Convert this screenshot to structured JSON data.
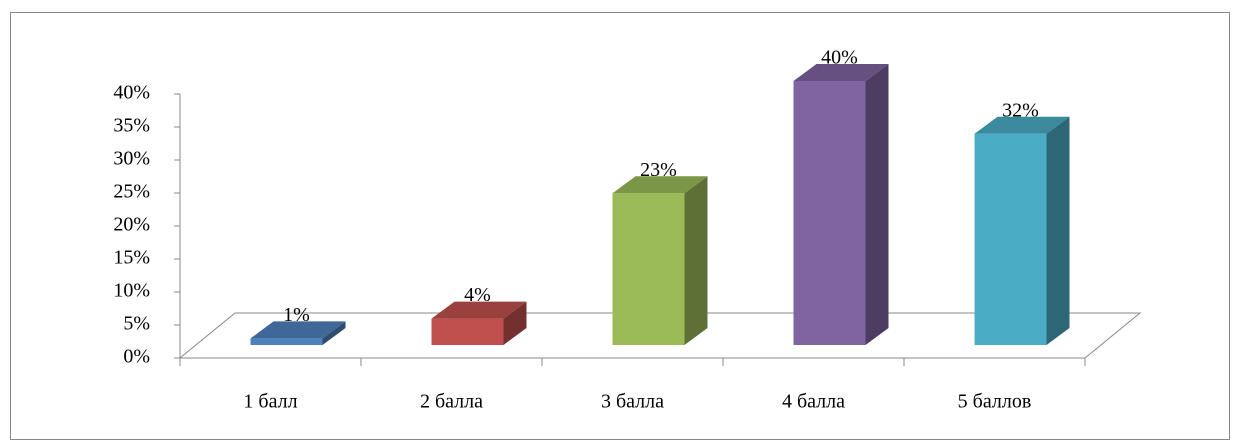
{
  "chart_data": {
    "type": "bar3d",
    "categories": [
      "1 балл",
      "2 балла",
      "3 балла",
      "4 балла",
      "5 баллов"
    ],
    "values": [
      1,
      4,
      23,
      40,
      32
    ],
    "value_labels": [
      "1%",
      "4%",
      "23%",
      "40%",
      "32%"
    ],
    "colors": [
      "#4f81bd",
      "#c0504d",
      "#9bbb59",
      "#8064a2",
      "#4bacc6"
    ],
    "ylim": [
      0,
      40
    ],
    "yticks": [
      {
        "value": 0,
        "label": "0%"
      },
      {
        "value": 5,
        "label": "5%"
      },
      {
        "value": 10,
        "label": "10%"
      },
      {
        "value": 15,
        "label": "15%"
      },
      {
        "value": 20,
        "label": "20%"
      },
      {
        "value": 25,
        "label": "25%"
      },
      {
        "value": 30,
        "label": "30%"
      },
      {
        "value": 35,
        "label": "35%"
      },
      {
        "value": 40,
        "label": "40%"
      }
    ]
  }
}
